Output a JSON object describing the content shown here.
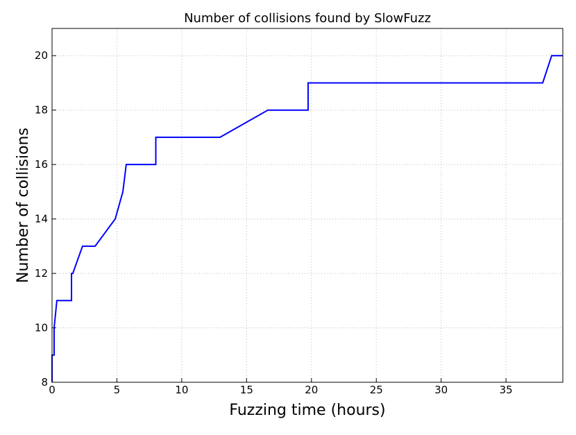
{
  "chart_data": {
    "type": "line",
    "title": "Number of collisions found by SlowFuzz",
    "x_label": "Fuzzing time (hours)",
    "y_label": "Number of collisions",
    "series": [
      {
        "color": "#0000ff",
        "x": [
          0,
          0,
          0.16,
          0.16,
          0.37,
          1.5,
          1.5,
          1.6,
          2.35,
          3.32,
          4.87,
          5.46,
          5.72,
          8.0,
          8.0,
          12.95,
          16.64,
          19.74,
          19.74,
          37.83,
          38.52,
          39.38
        ],
        "values": [
          8,
          9,
          9,
          10,
          11,
          11,
          12,
          12,
          13,
          13,
          14,
          15,
          16,
          16,
          17,
          17,
          18,
          18,
          19,
          19,
          20,
          20
        ]
      }
    ],
    "xlim": [
      0,
      39.38
    ],
    "ylim": [
      8,
      21
    ],
    "xticks": [
      0,
      5,
      10,
      15,
      20,
      25,
      30,
      35
    ],
    "yticks": [
      8,
      10,
      12,
      14,
      16,
      18,
      20
    ],
    "grid": true
  }
}
